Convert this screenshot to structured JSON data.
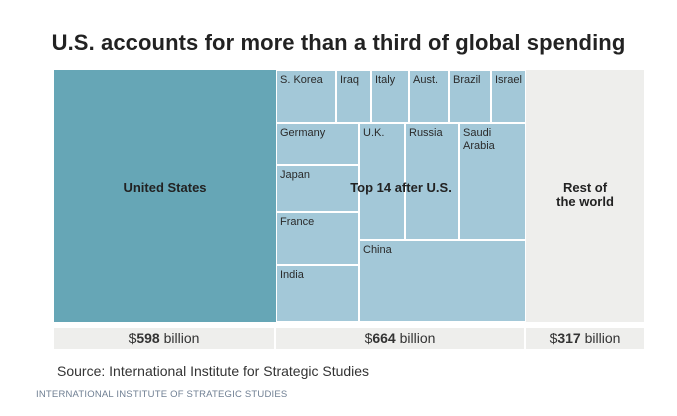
{
  "title": "U.S. accounts for more than a third of global spending",
  "chart_data": {
    "type": "treemap",
    "title": "U.S. accounts for more than a third of global spending",
    "unit": "billion",
    "currency": "$",
    "groups": [
      {
        "name": "United States",
        "label": "United States",
        "value": 598,
        "prefix": "$",
        "suffix": " billion",
        "color": "#66a6b6"
      },
      {
        "name": "Top 14 after U.S.",
        "label": "Top 14 after U.S.",
        "value": 664,
        "prefix": "$",
        "suffix": " billion",
        "color": "#a3c8d8",
        "members": [
          "China",
          "Russia",
          "Saudi Arabia",
          "U.K.",
          "India",
          "France",
          "Japan",
          "Germany",
          "S. Korea",
          "Brazil",
          "Italy",
          "Aust.",
          "Israel",
          "Iraq"
        ]
      },
      {
        "name": "Rest of the world",
        "label_line1": "Rest of",
        "label_line2": "the world",
        "value": 317,
        "prefix": "$",
        "suffix": " billion",
        "color": "#eeeeec"
      }
    ]
  },
  "cells": {
    "skorea": "S. Korea",
    "iraq": "Iraq",
    "italy": "Italy",
    "aust": "Aust.",
    "brazil": "Brazil",
    "israel": "Israel",
    "germany": "Germany",
    "uk": "U.K.",
    "russia": "Russia",
    "saudi_line1": "Saudi",
    "saudi_line2": "Arabia",
    "japan": "Japan",
    "france": "France",
    "india": "India",
    "china": "China"
  },
  "source": "Source: International Institute for Strategic Studies",
  "credit": "INTERNATIONAL INSTITUTE OF STRATEGIC STUDIES"
}
